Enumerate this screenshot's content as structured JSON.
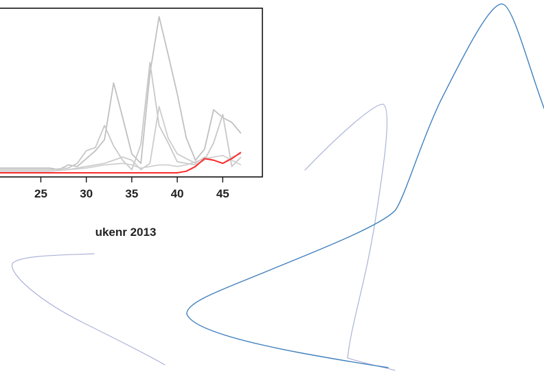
{
  "chart_data": {
    "type": "line",
    "xlabel": "ukenr 2013",
    "ylabel": "",
    "xlim": [
      19,
      48
    ],
    "ylim": [
      0,
      1
    ],
    "x_ticks": [
      25,
      30,
      35,
      40,
      45
    ],
    "grid": false,
    "legend": "none",
    "series": [
      {
        "color": "#c0c0c0",
        "x": [
          19,
          26,
          27,
          28,
          29,
          30,
          31,
          32,
          33,
          34,
          35,
          36,
          37,
          38,
          39,
          40,
          41,
          42,
          43,
          44,
          45,
          46,
          47
        ],
        "y": [
          0.03,
          0.03,
          0.02,
          0.05,
          0.04,
          0.09,
          0.14,
          0.21,
          0.57,
          0.35,
          0.12,
          0.06,
          0.63,
          0.99,
          0.75,
          0.5,
          0.22,
          0.08,
          0.15,
          0.4,
          0.35,
          0.32,
          0.25
        ]
      },
      {
        "color": "#c8c8c8",
        "x": [
          19,
          26,
          28,
          29,
          30,
          31,
          32,
          33,
          34,
          35,
          36,
          37,
          38,
          39,
          40,
          41,
          42,
          43,
          44,
          45,
          46,
          47
        ],
        "y": [
          0.02,
          0.02,
          0.03,
          0.06,
          0.14,
          0.16,
          0.3,
          0.17,
          0.08,
          0.02,
          0.18,
          0.7,
          0.3,
          0.19,
          0.07,
          0.06,
          0.05,
          0.08,
          0.19,
          0.37,
          0.04,
          0.1
        ]
      },
      {
        "color": "#cccccc",
        "x": [
          19,
          26,
          28,
          30,
          31,
          32,
          33,
          34,
          35,
          36,
          37,
          38,
          39,
          40,
          41,
          42,
          43,
          44,
          45,
          46,
          47
        ],
        "y": [
          0.01,
          0.01,
          0.02,
          0.04,
          0.05,
          0.06,
          0.08,
          0.1,
          0.08,
          0.02,
          0.06,
          0.42,
          0.22,
          0.12,
          0.09,
          0.06,
          0.1,
          0.08,
          0.06,
          0.1,
          0.12
        ]
      },
      {
        "color": "#d0d0d0",
        "x": [
          19,
          26,
          28,
          30,
          32,
          34,
          35,
          36,
          37,
          38,
          39,
          40,
          41,
          42,
          43,
          44,
          45,
          46,
          47
        ],
        "y": [
          0.01,
          0.01,
          0.02,
          0.03,
          0.05,
          0.06,
          0.05,
          0.03,
          0.04,
          0.05,
          0.05,
          0.04,
          0.05,
          0.07,
          0.09,
          0.1,
          0.11,
          0.08,
          0.05
        ]
      },
      {
        "color": "#ff2a2a",
        "x": [
          19,
          20,
          21,
          22,
          23,
          24,
          25,
          26,
          27,
          28,
          29,
          30,
          31,
          32,
          33,
          34,
          35,
          36,
          37,
          38,
          39,
          40,
          41,
          42,
          43,
          44,
          45,
          46,
          47
        ],
        "y": [
          0.0,
          0.0,
          0.0,
          0.0,
          0.0,
          0.0,
          0.0,
          0.0,
          0.0,
          0.0,
          0.0,
          0.0,
          0.0,
          0.0,
          0.0,
          0.0,
          0.0,
          0.0,
          0.0,
          0.0,
          0.0,
          0.0,
          0.01,
          0.04,
          0.09,
          0.08,
          0.06,
          0.09,
          0.13
        ]
      }
    ]
  },
  "decor": {
    "light_stroke": "#aab2d8",
    "dark_stroke": "#3f80bd"
  }
}
